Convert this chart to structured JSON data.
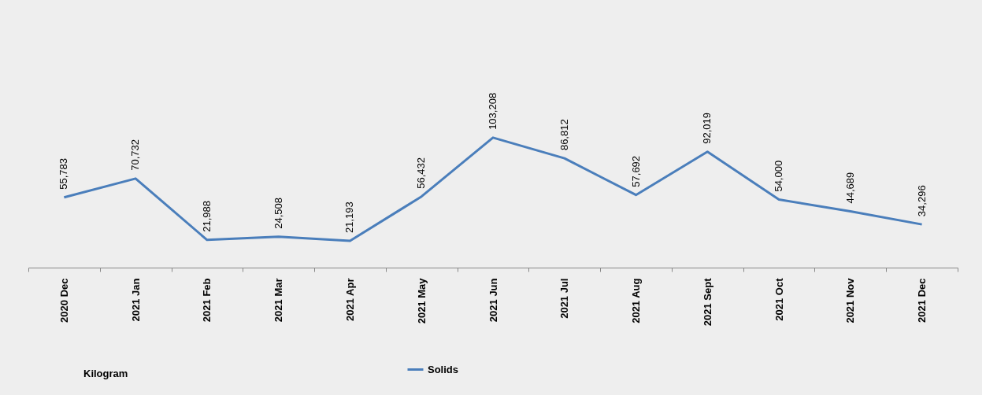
{
  "chart_data": {
    "type": "line",
    "categories": [
      "2020 Dec",
      "2021 Jan",
      "2021 Feb",
      "2021 Mar",
      "2021 Apr",
      "2021 May",
      "2021 Jun",
      "2021 Jul",
      "2021 Aug",
      "2021 Sept",
      "2021 Oct",
      "2021 Nov",
      "2021 Dec"
    ],
    "series": [
      {
        "name": "Solids",
        "color": "#4a7ebb",
        "values": [
          55783,
          70732,
          21988,
          24508,
          21193,
          56432,
          103208,
          86812,
          57692,
          92019,
          54000,
          44689,
          34296
        ],
        "value_labels": [
          "55,783",
          "70,732",
          "21,988",
          "24,508",
          "21,193",
          "56,432",
          "103,208",
          "86,812",
          "57,692",
          "92,019",
          "54,000",
          "44,689",
          "34,296"
        ]
      }
    ],
    "tick_labels": "x",
    "legend": "bottom",
    "marker": "none",
    "line_style": "solid",
    "annotations": [
      "Kilogram"
    ]
  }
}
